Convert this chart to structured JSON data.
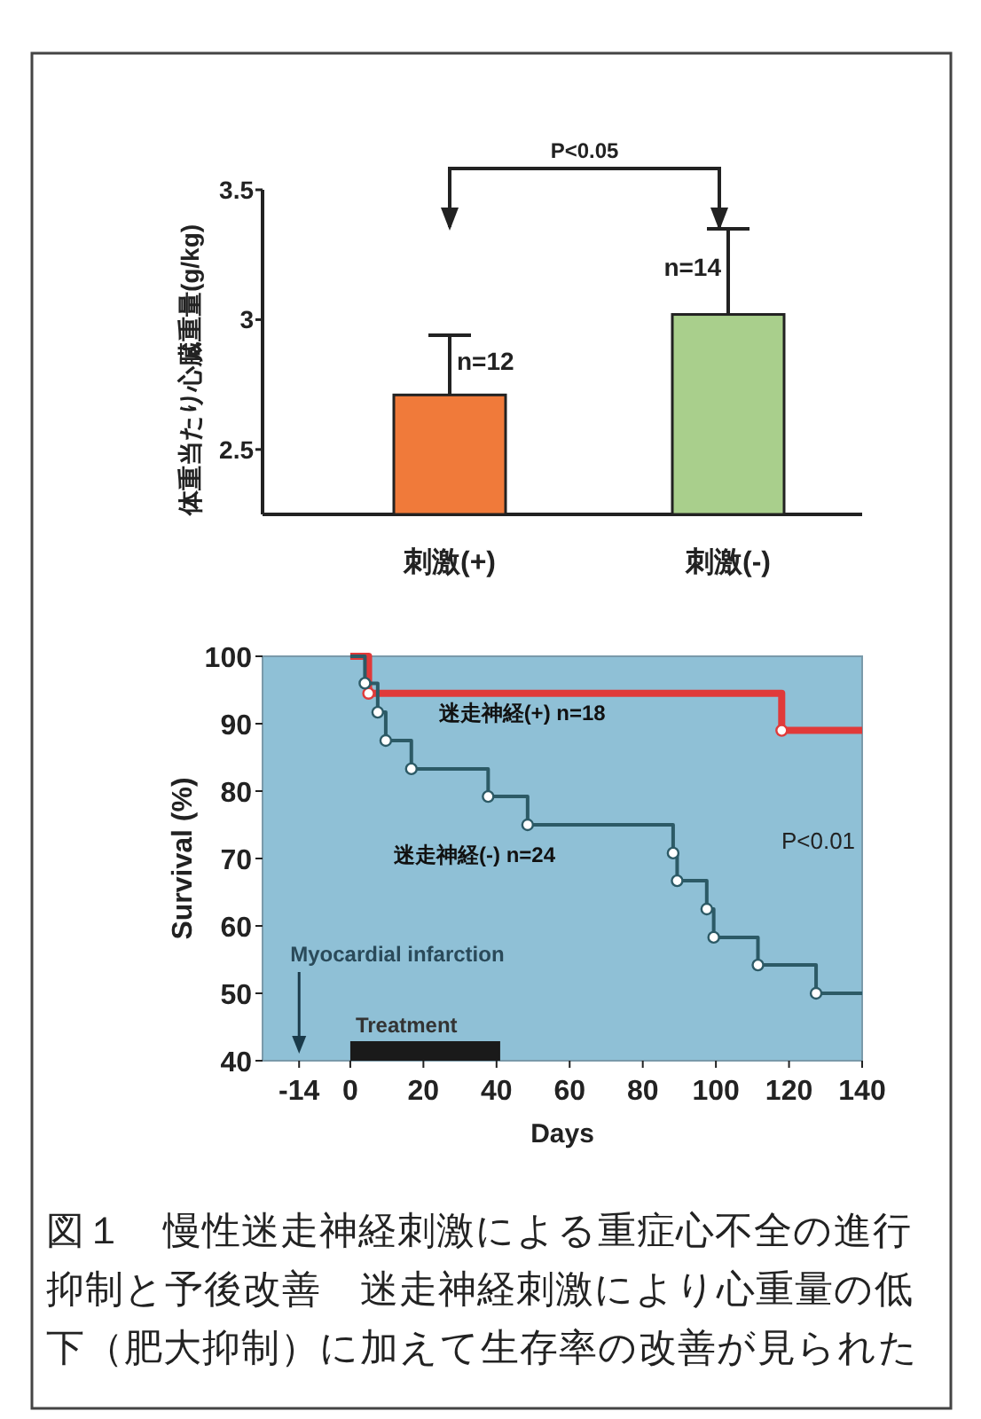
{
  "chart_data": [
    {
      "type": "bar",
      "ylabel": "体重当たり心臓重量(g/kg)",
      "categories": [
        "刺激(+)",
        "刺激(-)"
      ],
      "values": [
        2.71,
        3.02
      ],
      "colors": [
        "#f07a3a",
        "#a9cf8c"
      ],
      "errors": [
        [
          2.71,
          2.94
        ],
        [
          3.02,
          3.35
        ]
      ],
      "ylim": [
        2.25,
        3.5
      ],
      "yticks": [
        2.5,
        3,
        3.5
      ],
      "annotations": [
        "P<0.05",
        {
          "text": "n=12",
          "x": "刺激(+)",
          "y": 2.71
        },
        {
          "text": "n=14",
          "x": "刺激(-)",
          "y": 3.02
        }
      ],
      "grid": false
    },
    {
      "type": "step",
      "xlabel": "Days",
      "ylabel": "Survival (%)",
      "series": [
        {
          "name": "迷走神経(+) n=18",
          "color": "#e03a3a",
          "x": [
            0,
            5,
            118,
            140
          ],
          "values": [
            100,
            94.5,
            89,
            89
          ]
        },
        {
          "name": "迷走神経(-) n=24",
          "color": "#2c5a66",
          "x": [
            0,
            4,
            7.5,
            9.7,
            16.7,
            37.7,
            48.5,
            88.3,
            89.4,
            97.5,
            99.4,
            111.5,
            127.4,
            140
          ],
          "values": [
            100,
            96,
            91.7,
            87.5,
            83.3,
            79.2,
            75,
            70.8,
            66.7,
            62.5,
            58.3,
            54.2,
            50,
            50
          ]
        }
      ],
      "xlim": [
        -24,
        140
      ],
      "xticks": [
        -14,
        0,
        20,
        40,
        60,
        80,
        100,
        120,
        140
      ],
      "ylim": [
        40,
        100
      ],
      "yticks": [
        40,
        50,
        60,
        70,
        80,
        90,
        100
      ],
      "ref_lines": [
        {
          "axis": "x",
          "value": -14,
          "label": "Myocardial infarction",
          "color": "#1a3a4a"
        }
      ],
      "bands": [
        {
          "axis": "x",
          "from": 0,
          "to": 41,
          "label": "Treatment",
          "color": "#1a1a1a"
        }
      ],
      "annotations": [
        "P<0.01",
        "図１　慢性迷走神経刺激による重症心不全の進行抑制と予後改善　迷走神経刺激により心重量の低下（肥大抑制）に加えて生存率の改善が見られた"
      ],
      "marker": "circle",
      "grid": false
    }
  ]
}
